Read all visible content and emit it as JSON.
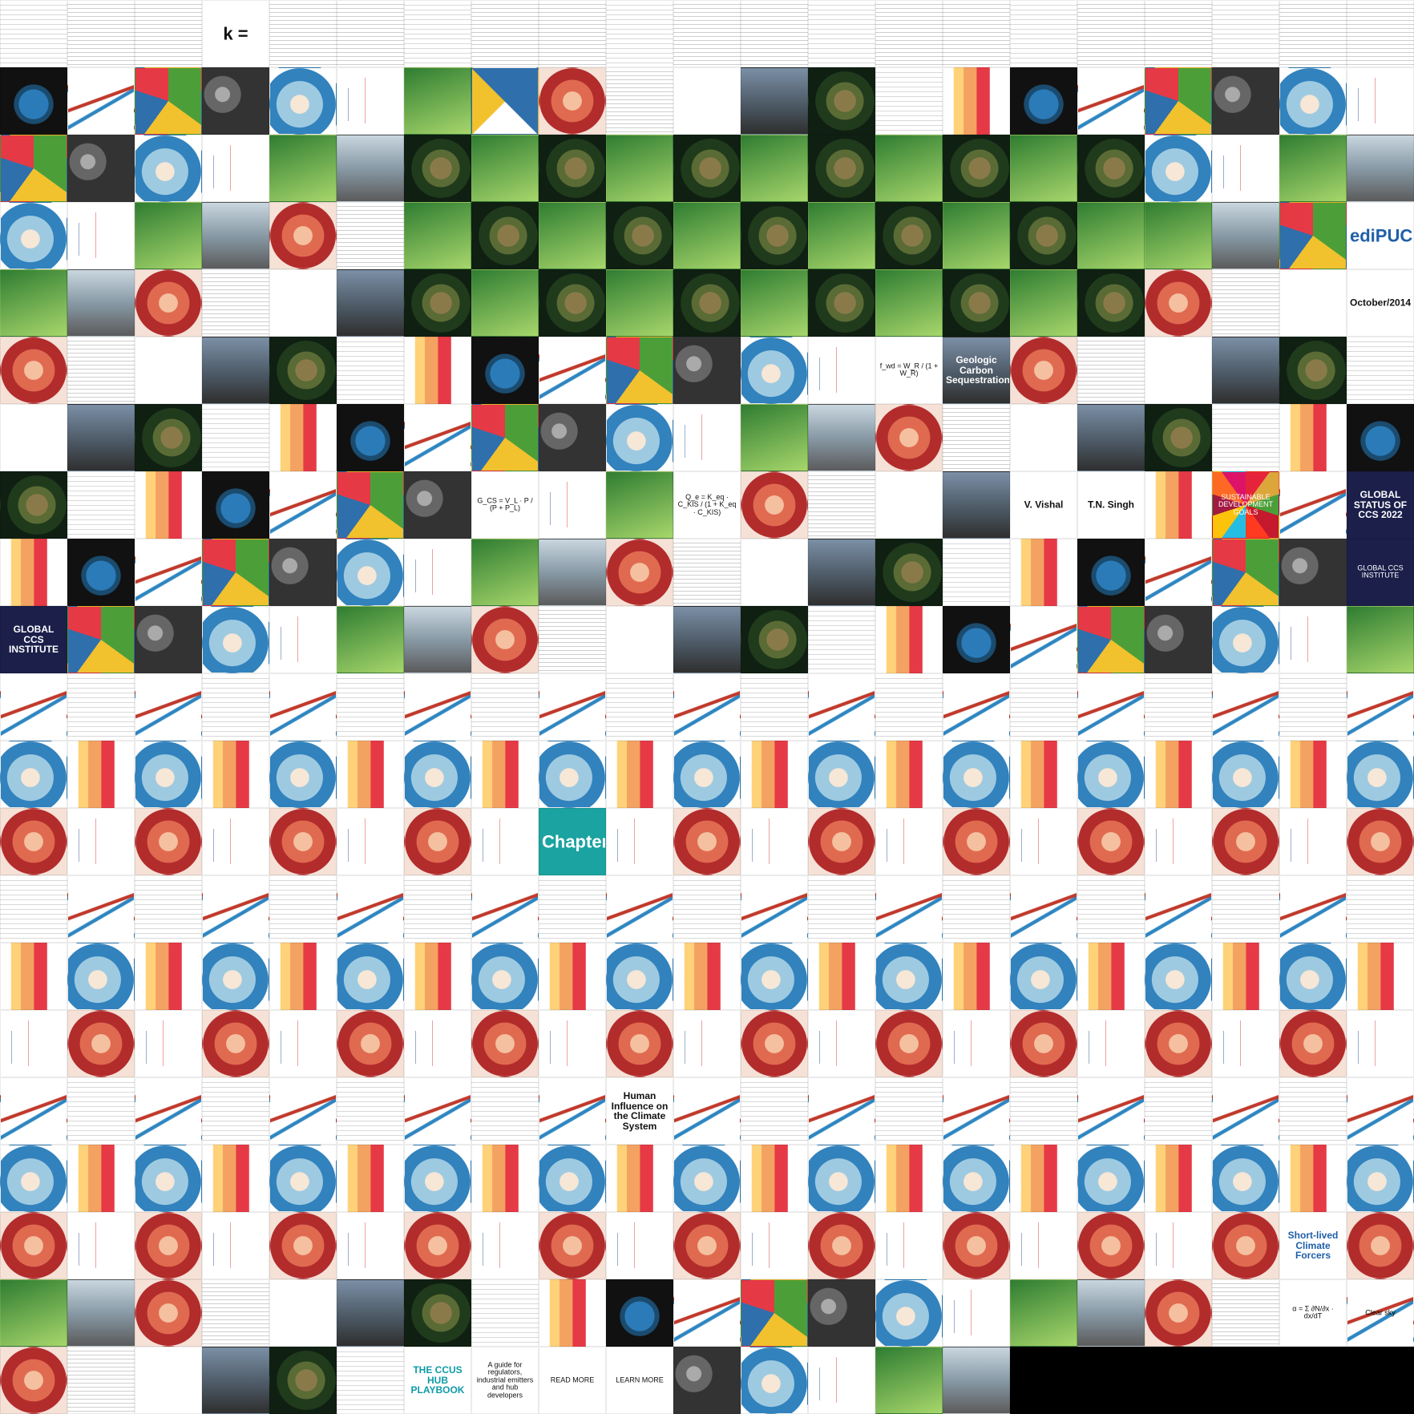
{
  "texts": {
    "matrix_k": "k =",
    "geologic": "Geologic Carbon Sequestration",
    "formula_fwd": "f_wd = W_R / (1 + W_R)",
    "formula_gcs": "G_CS = V_L · P / (P + P_L)",
    "formula_qe": "Q_e = K_eq · C_KIS / (1 + K_eq · C_KIS)",
    "edipucrs": "ediPUCRS",
    "edipucrs_date": "October/2014",
    "vishal": "V. Vishal",
    "singh": "T.N. Singh",
    "global_status": "GLOBAL STATUS OF CCS 2022",
    "global_ccs_1": "GLOBAL CCS INSTITUTE",
    "global_ccs_2": "GLOBAL CCS INSTITUTE",
    "chapters": "Chapters",
    "human_influence": "Human Influence on the Climate System",
    "short_lived": "Short-lived Climate Forcers",
    "ccus_hub": "THE CCUS HUB PLAYBOOK",
    "ccus_sub": "A guide for regulators, industrial emitters and hub developers",
    "alpha_formula": "α = Σ ∂N/∂x · dx/dT",
    "sdg": "SUSTAINABLE DEVELOPMENT GOALS",
    "clear_sky": "Clear sky",
    "read_more": "READ MORE",
    "learn_more": "LEARN MORE"
  }
}
